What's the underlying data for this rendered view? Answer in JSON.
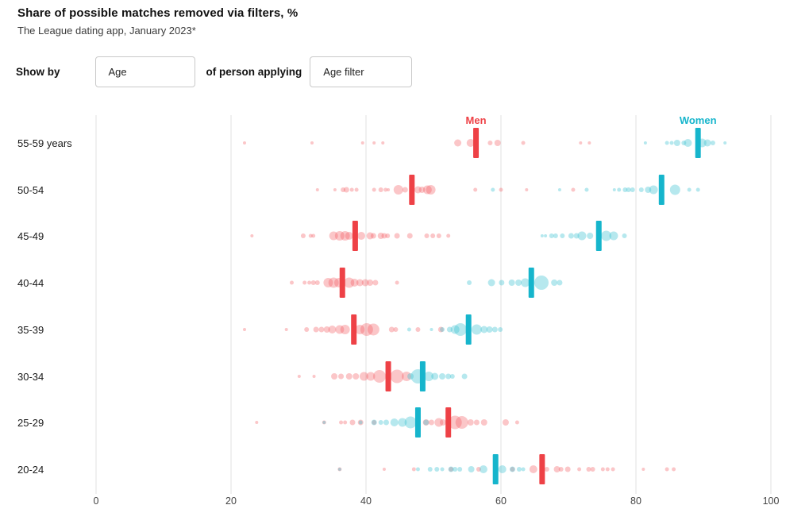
{
  "header": {
    "title": "Share of possible matches removed via filters, %",
    "subtitle": "The League dating app, January 2023*"
  },
  "controls": {
    "show_by_label": "Show by",
    "show_by_value": "Age",
    "middle_label": "of person applying",
    "filter_value": "Age filter"
  },
  "colors": {
    "men_solid": "#ee4146",
    "men_dot": "#f2575d",
    "women_solid": "#16b5cc",
    "women_dot": "#3ec3d3",
    "grid": "#e0e0e0",
    "tick_text": "#444444",
    "row_text": "#1a1a1a"
  },
  "chart_data": {
    "type": "scatter",
    "subtype": "dot-strip-beeswarm",
    "title": "Share of possible matches removed via filters, %",
    "xlabel": "",
    "ylabel": "",
    "x_axis": {
      "ticks": [
        0,
        20,
        40,
        60,
        80,
        100
      ],
      "range": [
        0,
        100
      ],
      "grid": true
    },
    "legend": [
      {
        "label": "Men",
        "x_value": 56.3
      },
      {
        "label": "Women",
        "x_value": 89.2
      }
    ],
    "note": "dots are [share_percent, bubble_diameter_px]; medians shown as thick bars",
    "rows": [
      {
        "label": "55-59 years",
        "men_median": 56.3,
        "women_median": 89.2,
        "men_dots": [
          [
            22,
            4
          ],
          [
            32,
            4
          ],
          [
            39.5,
            4
          ],
          [
            41.2,
            4
          ],
          [
            42.5,
            4
          ],
          [
            53.6,
            9
          ],
          [
            55.5,
            10
          ],
          [
            58.4,
            6
          ],
          [
            59.5,
            8
          ],
          [
            63.3,
            5
          ],
          [
            71.8,
            4
          ],
          [
            73.1,
            4
          ]
        ],
        "women_dots": [
          [
            81.4,
            4
          ],
          [
            84.6,
            5
          ],
          [
            85.3,
            5
          ],
          [
            86.1,
            8
          ],
          [
            87.1,
            6
          ],
          [
            87.7,
            10
          ],
          [
            89.8,
            11
          ],
          [
            90.6,
            9
          ],
          [
            91.4,
            6
          ],
          [
            93.2,
            4
          ]
        ]
      },
      {
        "label": "50-54",
        "men_median": 46.8,
        "women_median": 83.8,
        "men_dots": [
          [
            32.8,
            4
          ],
          [
            35.4,
            4
          ],
          [
            36.6,
            6
          ],
          [
            37.1,
            7
          ],
          [
            37.9,
            5
          ],
          [
            38.6,
            5
          ],
          [
            41.2,
            5
          ],
          [
            42.2,
            6
          ],
          [
            42.9,
            5
          ],
          [
            43.3,
            4
          ],
          [
            44.8,
            12
          ],
          [
            45.8,
            7
          ],
          [
            47.7,
            9
          ],
          [
            48.3,
            8
          ],
          [
            49.1,
            11
          ],
          [
            49.6,
            12
          ],
          [
            56.2,
            5
          ],
          [
            60,
            5
          ],
          [
            63.8,
            4
          ],
          [
            70.7,
            5
          ]
        ],
        "women_dots": [
          [
            58.8,
            5
          ],
          [
            68.7,
            4
          ],
          [
            72.7,
            5
          ],
          [
            76.8,
            4
          ],
          [
            77.5,
            5
          ],
          [
            78.4,
            6
          ],
          [
            78.9,
            6
          ],
          [
            79.5,
            6
          ],
          [
            80.8,
            6
          ],
          [
            81.8,
            8
          ],
          [
            82.6,
            11
          ],
          [
            85.8,
            13
          ],
          [
            87.9,
            5
          ],
          [
            89.2,
            5
          ]
        ]
      },
      {
        "label": "45-49",
        "men_median": 38.4,
        "women_median": 74.5,
        "men_dots": [
          [
            23.1,
            4
          ],
          [
            30.7,
            6
          ],
          [
            31.8,
            5
          ],
          [
            32.2,
            5
          ],
          [
            35.2,
            11
          ],
          [
            36.1,
            12
          ],
          [
            36.9,
            12
          ],
          [
            37.5,
            10
          ],
          [
            39.3,
            10
          ],
          [
            40.6,
            9
          ],
          [
            41.1,
            7
          ],
          [
            42.2,
            8
          ],
          [
            42.7,
            7
          ],
          [
            43.2,
            6
          ],
          [
            44.6,
            7
          ],
          [
            46.5,
            7
          ],
          [
            49,
            6
          ],
          [
            49.9,
            6
          ],
          [
            50.8,
            6
          ],
          [
            52.2,
            5
          ]
        ],
        "women_dots": [
          [
            66.1,
            4
          ],
          [
            66.6,
            4
          ],
          [
            67.5,
            6
          ],
          [
            68.1,
            6
          ],
          [
            69.1,
            6
          ],
          [
            70.4,
            7
          ],
          [
            71.2,
            7
          ],
          [
            72,
            11
          ],
          [
            73.2,
            8
          ],
          [
            75.6,
            13
          ],
          [
            76.7,
            11
          ],
          [
            78.3,
            6
          ]
        ]
      },
      {
        "label": "40-44",
        "men_median": 36.5,
        "women_median": 64.5,
        "men_dots": [
          [
            29,
            5
          ],
          [
            30.9,
            5
          ],
          [
            31.6,
            5
          ],
          [
            32.2,
            6
          ],
          [
            32.8,
            6
          ],
          [
            34.4,
            12
          ],
          [
            35.2,
            13
          ],
          [
            36,
            12
          ],
          [
            37.5,
            13
          ],
          [
            38.3,
            10
          ],
          [
            39.1,
            9
          ],
          [
            39.9,
            9
          ],
          [
            40.6,
            8
          ],
          [
            41.4,
            7
          ],
          [
            44.6,
            5
          ]
        ],
        "women_dots": [
          [
            55.3,
            6
          ],
          [
            58.6,
            9
          ],
          [
            60.1,
            7
          ],
          [
            61.6,
            8
          ],
          [
            62.6,
            8
          ],
          [
            63.6,
            11
          ],
          [
            66,
            18
          ],
          [
            67.9,
            8
          ],
          [
            68.7,
            7
          ]
        ]
      },
      {
        "label": "35-39",
        "men_median": 38.2,
        "women_median": 55.2,
        "men_dots": [
          [
            22,
            4
          ],
          [
            28.2,
            4
          ],
          [
            31.2,
            6
          ],
          [
            32.6,
            7
          ],
          [
            33.4,
            7
          ],
          [
            34.2,
            8
          ],
          [
            35,
            10
          ],
          [
            36.1,
            11
          ],
          [
            36.9,
            12
          ],
          [
            39.1,
            12
          ],
          [
            40.1,
            16
          ],
          [
            41.1,
            15
          ],
          [
            43.8,
            7
          ],
          [
            44.4,
            6
          ],
          [
            47.7,
            6
          ],
          [
            51.1,
            7
          ]
        ],
        "women_dots": [
          [
            46.4,
            5
          ],
          [
            49.7,
            4
          ],
          [
            51.3,
            6
          ],
          [
            52.4,
            7
          ],
          [
            53.2,
            11
          ],
          [
            54,
            16
          ],
          [
            56.4,
            13
          ],
          [
            57.5,
            9
          ],
          [
            58.3,
            8
          ],
          [
            59.1,
            7
          ],
          [
            59.9,
            6
          ]
        ]
      },
      {
        "label": "30-34",
        "men_median": 43.3,
        "women_median": 48.4,
        "men_dots": [
          [
            30.1,
            4
          ],
          [
            32.3,
            4
          ],
          [
            35.3,
            8
          ],
          [
            36.3,
            7
          ],
          [
            37.5,
            8
          ],
          [
            38.5,
            8
          ],
          [
            39.7,
            11
          ],
          [
            40.7,
            11
          ],
          [
            42,
            16
          ],
          [
            44.6,
            17
          ],
          [
            46,
            12
          ]
        ],
        "women_dots": [
          [
            46.6,
            8
          ],
          [
            47.7,
            18
          ],
          [
            49.3,
            12
          ],
          [
            50.2,
            9
          ],
          [
            51.3,
            8
          ],
          [
            52.2,
            7
          ],
          [
            52.8,
            6
          ],
          [
            54.6,
            7
          ]
        ]
      },
      {
        "label": "25-29",
        "men_median": 52.2,
        "women_median": 47.7,
        "men_dots": [
          [
            23.8,
            4
          ],
          [
            33.8,
            5
          ],
          [
            36.3,
            5
          ],
          [
            36.9,
            5
          ],
          [
            38,
            7
          ],
          [
            39.2,
            7
          ],
          [
            41.2,
            6
          ],
          [
            48.9,
            8
          ],
          [
            49.7,
            7
          ],
          [
            50.8,
            11
          ],
          [
            51.4,
            8
          ],
          [
            53.2,
            17
          ],
          [
            54.2,
            16
          ],
          [
            55.5,
            8
          ],
          [
            56.4,
            7
          ],
          [
            57.5,
            8
          ],
          [
            60.7,
            8
          ],
          [
            62.4,
            5
          ]
        ],
        "women_dots": [
          [
            33.8,
            4
          ],
          [
            39.2,
            5
          ],
          [
            41.2,
            7
          ],
          [
            42.2,
            6
          ],
          [
            43,
            7
          ],
          [
            44.2,
            10
          ],
          [
            45.4,
            11
          ],
          [
            46.6,
            15
          ],
          [
            48.9,
            7
          ]
        ]
      },
      {
        "label": "20-24",
        "men_median": 66.1,
        "women_median": 59.2,
        "men_dots": [
          [
            36.1,
            5
          ],
          [
            42.7,
            4
          ],
          [
            47.1,
            5
          ],
          [
            52.6,
            6
          ],
          [
            56.7,
            6
          ],
          [
            61.7,
            6
          ],
          [
            64.8,
            10
          ],
          [
            66.8,
            6
          ],
          [
            68.3,
            8
          ],
          [
            68.9,
            6
          ],
          [
            69.9,
            7
          ],
          [
            71.6,
            5
          ],
          [
            73,
            6
          ],
          [
            73.6,
            6
          ],
          [
            75.1,
            5
          ],
          [
            75.8,
            5
          ],
          [
            76.6,
            5
          ],
          [
            81.1,
            4
          ],
          [
            84.6,
            5
          ],
          [
            85.6,
            5
          ]
        ],
        "women_dots": [
          [
            36.1,
            4
          ],
          [
            47.7,
            5
          ],
          [
            49.5,
            6
          ],
          [
            50.5,
            6
          ],
          [
            51.3,
            5
          ],
          [
            52.6,
            7
          ],
          [
            53.2,
            6
          ],
          [
            53.9,
            6
          ],
          [
            55.6,
            8
          ],
          [
            57.4,
            10
          ],
          [
            60.2,
            10
          ],
          [
            61.7,
            7
          ],
          [
            62.7,
            6
          ],
          [
            63.3,
            5
          ]
        ]
      }
    ]
  }
}
